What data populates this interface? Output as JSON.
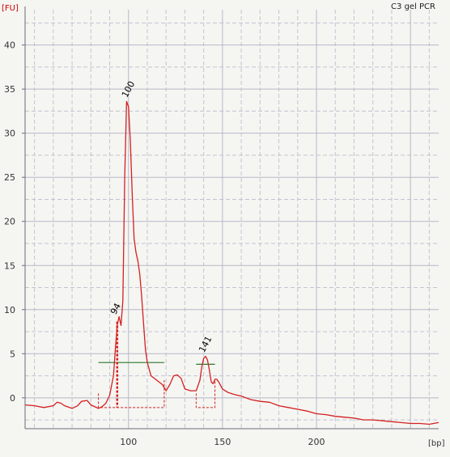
{
  "chart_data": {
    "type": "line",
    "title": "C3 gel PCR",
    "ylabel": "[FU]",
    "xlabel": "[bp]",
    "xlim": [
      45,
      265
    ],
    "ylim": [
      -3.5,
      44
    ],
    "x_ticks": [
      100,
      150,
      200
    ],
    "y_ticks": [
      0,
      5,
      10,
      15,
      20,
      25,
      30,
      35,
      40
    ],
    "grid": true,
    "colors": {
      "trace": "#d42020",
      "baseline": "#2a7a2a",
      "grid": "#b8b8c8",
      "background": "#f5f5f2",
      "unit_label": "#cc0000"
    },
    "series": [
      {
        "values_x": [
          45,
          50,
          55,
          60,
          62,
          64,
          66,
          70,
          73,
          75,
          78,
          80,
          84,
          86,
          88,
          90,
          92,
          93,
          94,
          95,
          96,
          97,
          98,
          99,
          100,
          101,
          102,
          103,
          104,
          105,
          106,
          107,
          108,
          109,
          110,
          112,
          115,
          118,
          120,
          122,
          124,
          126,
          128,
          130,
          133,
          136,
          138,
          139,
          140,
          141,
          142,
          143,
          144,
          145,
          146,
          147,
          148,
          150,
          153,
          156,
          160,
          165,
          170,
          175,
          180,
          185,
          190,
          195,
          200,
          205,
          210,
          215,
          220,
          225,
          230,
          235,
          240,
          245,
          250,
          255,
          260,
          265
        ],
        "values_y": [
          -0.8,
          -0.9,
          -1.1,
          -0.9,
          -0.5,
          -0.6,
          -0.9,
          -1.2,
          -0.9,
          -0.4,
          -0.3,
          -0.8,
          -1.2,
          -1.0,
          -0.6,
          0.3,
          2.5,
          5.5,
          8.2,
          9.2,
          8.2,
          11.0,
          25.0,
          33.6,
          33.0,
          29.0,
          23.0,
          18.0,
          16.5,
          15.5,
          14.0,
          11.5,
          8.5,
          5.5,
          4.0,
          2.5,
          2.0,
          1.5,
          0.8,
          1.5,
          2.5,
          2.6,
          2.2,
          1.0,
          0.8,
          0.8,
          2.0,
          3.5,
          4.5,
          4.7,
          4.3,
          3.2,
          1.8,
          1.6,
          2.1,
          2.1,
          1.8,
          1.0,
          0.6,
          0.4,
          0.2,
          -0.2,
          -0.4,
          -0.5,
          -0.9,
          -1.1,
          -1.3,
          -1.5,
          -1.8,
          -1.9,
          -2.1,
          -2.2,
          -2.3,
          -2.5,
          -2.5,
          -2.6,
          -2.7,
          -2.8,
          -2.9,
          -2.9,
          -3.0,
          -2.8
        ]
      }
    ],
    "peaks": [
      {
        "label": "100",
        "x": 100,
        "y": 33.6
      },
      {
        "label": "94",
        "x": 94,
        "y": 9.0
      },
      {
        "label": "141",
        "x": 141,
        "y": 4.7
      }
    ],
    "integration_regions": [
      {
        "x_start": 84,
        "x_end": 119,
        "y": 4.0
      },
      {
        "x_start": 136,
        "x_end": 146,
        "y": 3.8
      }
    ]
  }
}
